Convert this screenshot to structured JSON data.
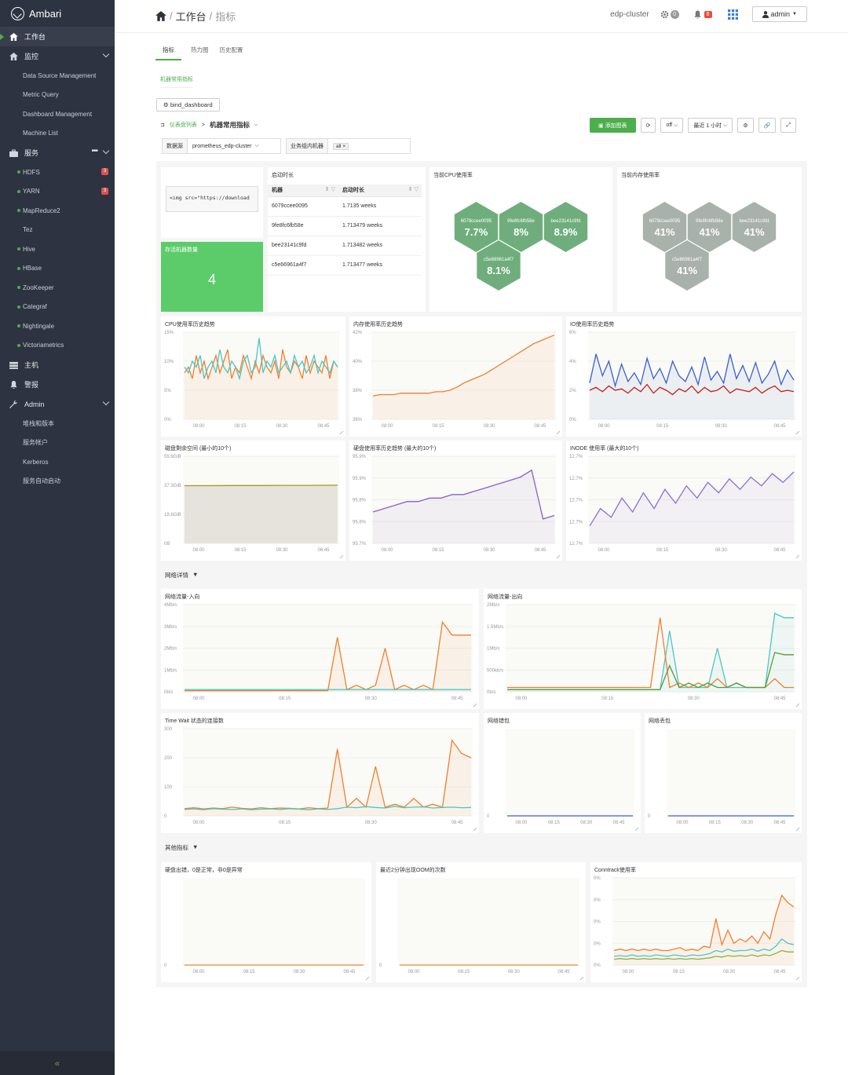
{
  "sidebar": {
    "brand": "Ambari",
    "top": [
      {
        "label": "工作台"
      },
      {
        "label": "监控"
      },
      {
        "label": "服务"
      },
      {
        "label": "主机"
      },
      {
        "label": "警报"
      },
      {
        "label": "Admin"
      }
    ],
    "monitor_items": [
      "Data Source Management",
      "Metric Query",
      "Dashboard Management",
      "Machine List"
    ],
    "service_items": [
      {
        "label": "HDFS",
        "dot": true,
        "badge": "3"
      },
      {
        "label": "YARN",
        "dot": true,
        "badge": "3"
      },
      {
        "label": "MapReduce2",
        "dot": true,
        "badge": ""
      },
      {
        "label": "Tez",
        "dot": false,
        "badge": ""
      },
      {
        "label": "Hive",
        "dot": true,
        "badge": ""
      },
      {
        "label": "HBase",
        "dot": true,
        "badge": ""
      },
      {
        "label": "ZooKeeper",
        "dot": true,
        "badge": ""
      },
      {
        "label": "Categraf",
        "dot": true,
        "badge": ""
      },
      {
        "label": "Nightingale",
        "dot": true,
        "badge": ""
      },
      {
        "label": "Victoriametrics",
        "dot": true,
        "badge": ""
      }
    ],
    "admin_items": [
      "堆栈和版本",
      "服务帐户",
      "Kerberos",
      "服务自动启动"
    ],
    "service_more": "•••",
    "collapse": "«"
  },
  "header": {
    "crumb_home": "工作台",
    "crumb_sep": "/",
    "crumb_current": "指标",
    "cluster": "edp-cluster",
    "gear_count": "0",
    "bell_count": "6",
    "user": "admin"
  },
  "tabs": [
    "指标",
    "热力图",
    "历史配置"
  ],
  "subtab": "机器常用指标",
  "bind_button": "bind_dashboard",
  "dashbar": {
    "list_link": "仪表盘列表",
    "arrow": ">",
    "name": "机器常用指标"
  },
  "toolbar": {
    "add": "添加图表",
    "refresh": "off",
    "range": "最近 1 小时"
  },
  "filters": {
    "datasource_label": "数据源",
    "datasource_value": "prometheus_edp-cluster",
    "group_label": "业务组内机器",
    "group_tag": "all"
  },
  "panels": {
    "img": {
      "code": "<img src=\"https://download"
    },
    "alive": {
      "title": "存活机器数量",
      "value": "4",
      "color": "#5ccc6a"
    },
    "uptime": {
      "title": "启动时长",
      "col1": "机器",
      "col2": "启动时长",
      "rows": [
        [
          "6079ccee0095",
          "1.7135 weeks"
        ],
        [
          "9fe8fc6fb58e",
          "1.713479 weeks"
        ],
        [
          "bee23141c9fd",
          "1.713482 weeks"
        ],
        [
          "c5e66961a4f7",
          "1.713477 weeks"
        ]
      ]
    },
    "cpu_hex": {
      "title": "当前CPU使用率",
      "items": [
        {
          "host": "6079ccee0095",
          "value": "7.7%"
        },
        {
          "host": "9fe8fc6fb58e",
          "value": "8%"
        },
        {
          "host": "bee23141c9fd",
          "value": "8.9%"
        },
        {
          "host": "c5e66961a4f7",
          "value": "8.1%"
        }
      ]
    },
    "mem_hex": {
      "title": "当前内存使用率",
      "items": [
        {
          "host": "6079ccee0095",
          "value": "41%"
        },
        {
          "host": "9fe8fc6fb58e",
          "value": "41%"
        },
        {
          "host": "bee23141c9fd",
          "value": "41%"
        },
        {
          "host": "c5e66961a4f7",
          "value": "41%"
        }
      ]
    }
  },
  "section_network": "网络详情",
  "section_other": "其他指标",
  "chart_data": [
    {
      "id": "cpu",
      "type": "line",
      "title": "CPU使用率历史趋势",
      "y_ticks": [
        "15%",
        "10%",
        "5%",
        "0%"
      ],
      "x_ticks": [
        "08:00",
        "08:15",
        "08:30",
        "08:45"
      ],
      "series": [
        {
          "name": "orange",
          "color": "#f08030",
          "values": [
            8,
            9,
            7,
            11,
            8,
            10,
            7,
            9,
            11,
            8,
            10,
            12,
            7,
            9,
            8,
            11,
            9,
            7,
            10,
            8,
            11,
            9,
            8,
            10,
            7,
            12,
            9,
            8,
            10,
            9,
            7,
            11,
            8,
            10,
            9,
            8,
            11,
            7,
            10,
            9
          ]
        },
        {
          "name": "teal",
          "color": "#48c8c8",
          "values": [
            9,
            8,
            10,
            9,
            11,
            7,
            9,
            10,
            8,
            12,
            9,
            8,
            10,
            9,
            7,
            10,
            11,
            8,
            9,
            14,
            8,
            10,
            9,
            11,
            8,
            9,
            10,
            8,
            11,
            9,
            10,
            8,
            9,
            11,
            8,
            10,
            9,
            8,
            10,
            9
          ]
        }
      ],
      "ymax": 15
    },
    {
      "id": "mem",
      "type": "line",
      "title": "内存使用率历史趋势",
      "y_ticks": [
        "42%",
        "40%",
        "38%",
        "36%"
      ],
      "x_ticks": [
        "08:00",
        "08:15",
        "08:30",
        "08:45"
      ],
      "series": [
        {
          "name": "orange",
          "color": "#f08030",
          "values": [
            37.6,
            37.7,
            37.7,
            37.7,
            37.8,
            37.8,
            37.8,
            37.8,
            37.8,
            37.9,
            37.9,
            38.0,
            38.2,
            38.5,
            38.7,
            38.9,
            39.1,
            39.4,
            39.7,
            40.0,
            40.3,
            40.6,
            40.9,
            41.2,
            41.4,
            41.6,
            41.8
          ]
        }
      ],
      "ymin": 36,
      "ymax": 42
    },
    {
      "id": "io",
      "type": "line",
      "title": "IO使用率历史趋势",
      "y_ticks": [
        "6%",
        "4%",
        "2%",
        "0%"
      ],
      "x_ticks": [
        "08:00",
        "08:15",
        "08:30",
        "08:45"
      ],
      "series": [
        {
          "name": "blue",
          "color": "#3a5fcd",
          "values": [
            2.5,
            4.5,
            3,
            4,
            2.3,
            3.8,
            2.6,
            3.2,
            2.4,
            4.2,
            2.8,
            3.5,
            2.5,
            4,
            3,
            2.6,
            3.6,
            2.4,
            4.3,
            2.7,
            3.3,
            2.5,
            4.5,
            2.8,
            3.7,
            2.6,
            3.9,
            2.5,
            3.1,
            4,
            2.4,
            3.4,
            2.7
          ]
        },
        {
          "name": "red",
          "color": "#c0201a",
          "values": [
            2,
            2.2,
            1.9,
            2.3,
            2,
            2.1,
            1.8,
            2.2,
            1.9,
            2.4,
            1.8,
            2.2,
            2,
            1.7,
            2.1,
            1.9,
            2.3,
            1.8,
            2.2,
            1.9,
            2,
            2.3,
            1.8,
            2.1,
            2,
            1.9,
            2.2,
            1.8,
            2.1,
            2.3,
            1.9,
            2,
            1.9
          ]
        }
      ],
      "ymax": 6
    },
    {
      "id": "disk_free",
      "type": "area",
      "title": "磁盘剩余空间 (最小的10个)",
      "y_ticks": [
        "55.9GiB",
        "37.3GiB",
        "18.6GiB",
        "0B"
      ],
      "x_ticks": [
        "08:00",
        "08:15",
        "08:30",
        "08:45"
      ],
      "series": [
        {
          "name": "olive",
          "color": "#a89a1a",
          "values": [
            37,
            37,
            37.1,
            37.1,
            37.2,
            37.2,
            37.3
          ]
        }
      ],
      "ymax": 55.9
    },
    {
      "id": "disk_used",
      "type": "line",
      "title": "硬盘使用率历史趋势 (最大的10个)",
      "y_ticks": [
        "95.9%",
        "95.9%",
        "95.8%",
        "95.8%",
        "95.7%"
      ],
      "x_ticks": [
        "08:00",
        "08:15",
        "08:30",
        "08:45"
      ],
      "series": [
        {
          "name": "purple",
          "color": "#8a5fc8",
          "values": [
            95.79,
            95.8,
            95.81,
            95.82,
            95.82,
            95.83,
            95.83,
            95.84,
            95.84,
            95.85,
            95.86,
            95.87,
            95.88,
            95.89,
            95.91,
            95.77,
            95.78
          ]
        }
      ],
      "ymin": 95.7,
      "ymax": 95.95
    },
    {
      "id": "inode",
      "type": "line",
      "title": "INODE 使用率 (最大的10个)",
      "y_ticks": [
        "12.7%",
        "12.7%",
        "12.7%",
        "12.7%",
        "12.7%"
      ],
      "x_ticks": [
        "08:00",
        "08:15",
        "08:30",
        "08:45"
      ],
      "series": [
        {
          "name": "mixed",
          "color": "#8a6fd8",
          "values": [
            1,
            2,
            1.5,
            2.6,
            1.8,
            2.9,
            2,
            3.1,
            2.3,
            3.3,
            2.6,
            3.5,
            2.9,
            3.7,
            3.1,
            3.8,
            3.3,
            4,
            3.5,
            4.1
          ]
        }
      ],
      "ymax": 5
    },
    {
      "id": "net_in",
      "type": "line",
      "title": "网络流量-入向",
      "y_ticks": [
        "4Mb/s",
        "3Mb/s",
        "2Mb/s",
        "1Mb/s",
        "0b/s"
      ],
      "x_ticks": [
        "08:00",
        "08:15",
        "08:30",
        "08:45"
      ],
      "series": [
        {
          "name": "orange",
          "color": "#f08030",
          "values": [
            0.05,
            0.05,
            0.05,
            0.05,
            0.05,
            0.05,
            0.05,
            0.05,
            0.05,
            0.05,
            0.05,
            0.05,
            0.05,
            0.05,
            0.05,
            0.05,
            2.5,
            0.1,
            0.3,
            0.1,
            0.3,
            2.0,
            0.1,
            0.3,
            0.1,
            0.3,
            0.1,
            3.2,
            2.6,
            2.6,
            2.6
          ]
        },
        {
          "name": "teal",
          "color": "#48c8c8",
          "values": [
            0.1,
            0.1,
            0.1,
            0.1,
            0.1,
            0.1,
            0.1,
            0.1,
            0.1,
            0.1,
            0.1,
            0.1,
            0.1,
            0.1,
            0.1,
            0.1,
            0.1,
            0.1,
            0.1,
            0.1,
            0.1,
            0.1,
            0.1,
            0.1,
            0.1,
            0.1,
            0.1,
            0.1,
            0.1,
            0.1,
            0.1
          ]
        }
      ],
      "ymax": 4
    },
    {
      "id": "net_out",
      "type": "line",
      "title": "网络流量-出向",
      "y_ticks": [
        "2Mb/s",
        "1.5Mb/s",
        "1Mb/s",
        "500kb/s",
        "0b/s"
      ],
      "x_ticks": [
        "08:00",
        "08:15",
        "08:30",
        "08:45"
      ],
      "series": [
        {
          "name": "teal",
          "color": "#48c8c8",
          "values": [
            0.05,
            0.05,
            0.05,
            0.05,
            0.05,
            0.05,
            0.05,
            0.05,
            0.05,
            0.05,
            0.05,
            0.05,
            0.05,
            0.05,
            0.05,
            0.05,
            0.05,
            1.4,
            0.1,
            0.1,
            0.1,
            0.1,
            1.0,
            0.1,
            0.1,
            0.1,
            0.1,
            0.1,
            1.8,
            1.7,
            1.7
          ]
        },
        {
          "name": "orange",
          "color": "#f08030",
          "values": [
            0.1,
            0.1,
            0.1,
            0.1,
            0.1,
            0.1,
            0.1,
            0.1,
            0.1,
            0.1,
            0.1,
            0.1,
            0.1,
            0.1,
            0.1,
            0.1,
            1.7,
            0.1,
            0.2,
            0.1,
            0.2,
            0.1,
            0.3,
            0.1,
            0.2,
            0.1,
            0.1,
            0.1,
            0.3,
            0.1,
            0.1
          ]
        },
        {
          "name": "green",
          "color": "#5a9a3a",
          "values": [
            0.05,
            0.05,
            0.05,
            0.05,
            0.05,
            0.05,
            0.05,
            0.05,
            0.05,
            0.05,
            0.05,
            0.05,
            0.05,
            0.05,
            0.05,
            0.05,
            0.05,
            0.6,
            0.1,
            0.2,
            0.1,
            0.2,
            0.1,
            0.1,
            0.2,
            0.1,
            0.1,
            0.1,
            0.9,
            0.85,
            0.85
          ]
        }
      ],
      "ymax": 2
    },
    {
      "id": "timewait",
      "type": "line",
      "title": "Time Wait 状态的连接数",
      "y_ticks": [
        "300",
        "200",
        "100",
        "0"
      ],
      "x_ticks": [
        "08:00",
        "08:15",
        "08:30",
        "08:45"
      ],
      "series": [
        {
          "name": "orange",
          "color": "#f08030",
          "values": [
            25,
            28,
            24,
            27,
            25,
            30,
            26,
            24,
            28,
            25,
            27,
            26,
            24,
            28,
            25,
            27,
            230,
            30,
            60,
            30,
            170,
            30,
            40,
            30,
            60,
            30,
            40,
            30,
            260,
            215,
            200
          ]
        },
        {
          "name": "teal",
          "color": "#48c8c8",
          "values": [
            22,
            24,
            21,
            25,
            23,
            22,
            24,
            21,
            23,
            24,
            22,
            25,
            23,
            21,
            24,
            22,
            25,
            30,
            28,
            32,
            29,
            27,
            33,
            28,
            30,
            31,
            27,
            29,
            30,
            28,
            29
          ]
        }
      ],
      "ymax": 300
    },
    {
      "id": "net_err",
      "type": "line",
      "title": "网络错包",
      "y_ticks": [
        "0"
      ],
      "x_ticks": [
        "08:00",
        "08:15",
        "08:30",
        "08:45"
      ],
      "series": [
        {
          "name": "flat",
          "color": "#3a5fcd",
          "values": [
            0,
            0
          ]
        }
      ],
      "ymax": 1
    },
    {
      "id": "net_drop",
      "type": "line",
      "title": "网络丢包",
      "y_ticks": [
        "0"
      ],
      "x_ticks": [
        "08:00",
        "08:15",
        "08:30",
        "08:45"
      ],
      "series": [
        {
          "name": "flat",
          "color": "#3a5fcd",
          "values": [
            0,
            0
          ]
        }
      ],
      "ymax": 1
    },
    {
      "id": "disk_err",
      "type": "line",
      "title": "硬盘出错，0是正常，非0是异常",
      "y_ticks": [
        "0"
      ],
      "x_ticks": [
        "08:00",
        "08:15",
        "08:30",
        "08:45"
      ],
      "series": [
        {
          "name": "flat",
          "color": "#f08030",
          "values": [
            0,
            0
          ]
        }
      ],
      "ymax": 1
    },
    {
      "id": "oom",
      "type": "line",
      "title": "最近2分钟出现OOM的次数",
      "y_ticks": [
        "0"
      ],
      "x_ticks": [
        "08:00",
        "08:15",
        "08:30",
        "08:45"
      ],
      "series": [
        {
          "name": "flat",
          "color": "#f08030",
          "values": [
            0,
            0
          ]
        }
      ],
      "ymax": 1
    },
    {
      "id": "conntrack",
      "type": "line",
      "title": "Conntrack使用率",
      "y_ticks": [
        "0%",
        "0%",
        "0%",
        "0%",
        "0%"
      ],
      "x_ticks": [
        "08:00",
        "08:15",
        "08:30",
        "08:45"
      ],
      "series": [
        {
          "name": "orange",
          "color": "#f08030",
          "values": [
            1,
            1.1,
            1,
            1.1,
            1,
            1.1,
            1,
            1.1,
            1,
            1,
            1.1,
            1.2,
            1,
            1.1,
            1,
            1.3,
            1.2,
            3.2,
            1.4,
            2.4,
            1.5,
            1.8,
            1.6,
            2,
            1.5,
            2.3,
            1.8,
            3.5,
            4.8,
            4.3,
            4
          ]
        },
        {
          "name": "teal",
          "color": "#48c8c8",
          "values": [
            0.6,
            0.65,
            0.6,
            0.7,
            0.6,
            0.65,
            0.6,
            0.7,
            0.65,
            0.6,
            0.7,
            0.65,
            0.6,
            0.7,
            0.65,
            0.7,
            0.8,
            1.0,
            0.9,
            1.1,
            0.95,
            1.0,
            1.0,
            1.1,
            0.95,
            1.1,
            1.0,
            1.3,
            1.8,
            1.5,
            1.4
          ]
        },
        {
          "name": "green",
          "color": "#8ab04a",
          "values": [
            0.4,
            0.45,
            0.4,
            0.45,
            0.4,
            0.45,
            0.4,
            0.45,
            0.4,
            0.45,
            0.4,
            0.45,
            0.4,
            0.45,
            0.4,
            0.45,
            0.5,
            0.6,
            0.55,
            0.65,
            0.6,
            0.65,
            0.6,
            0.7,
            0.6,
            0.7,
            0.65,
            0.8,
            1.0,
            0.9,
            0.9
          ]
        }
      ],
      "ymax": 6
    }
  ]
}
